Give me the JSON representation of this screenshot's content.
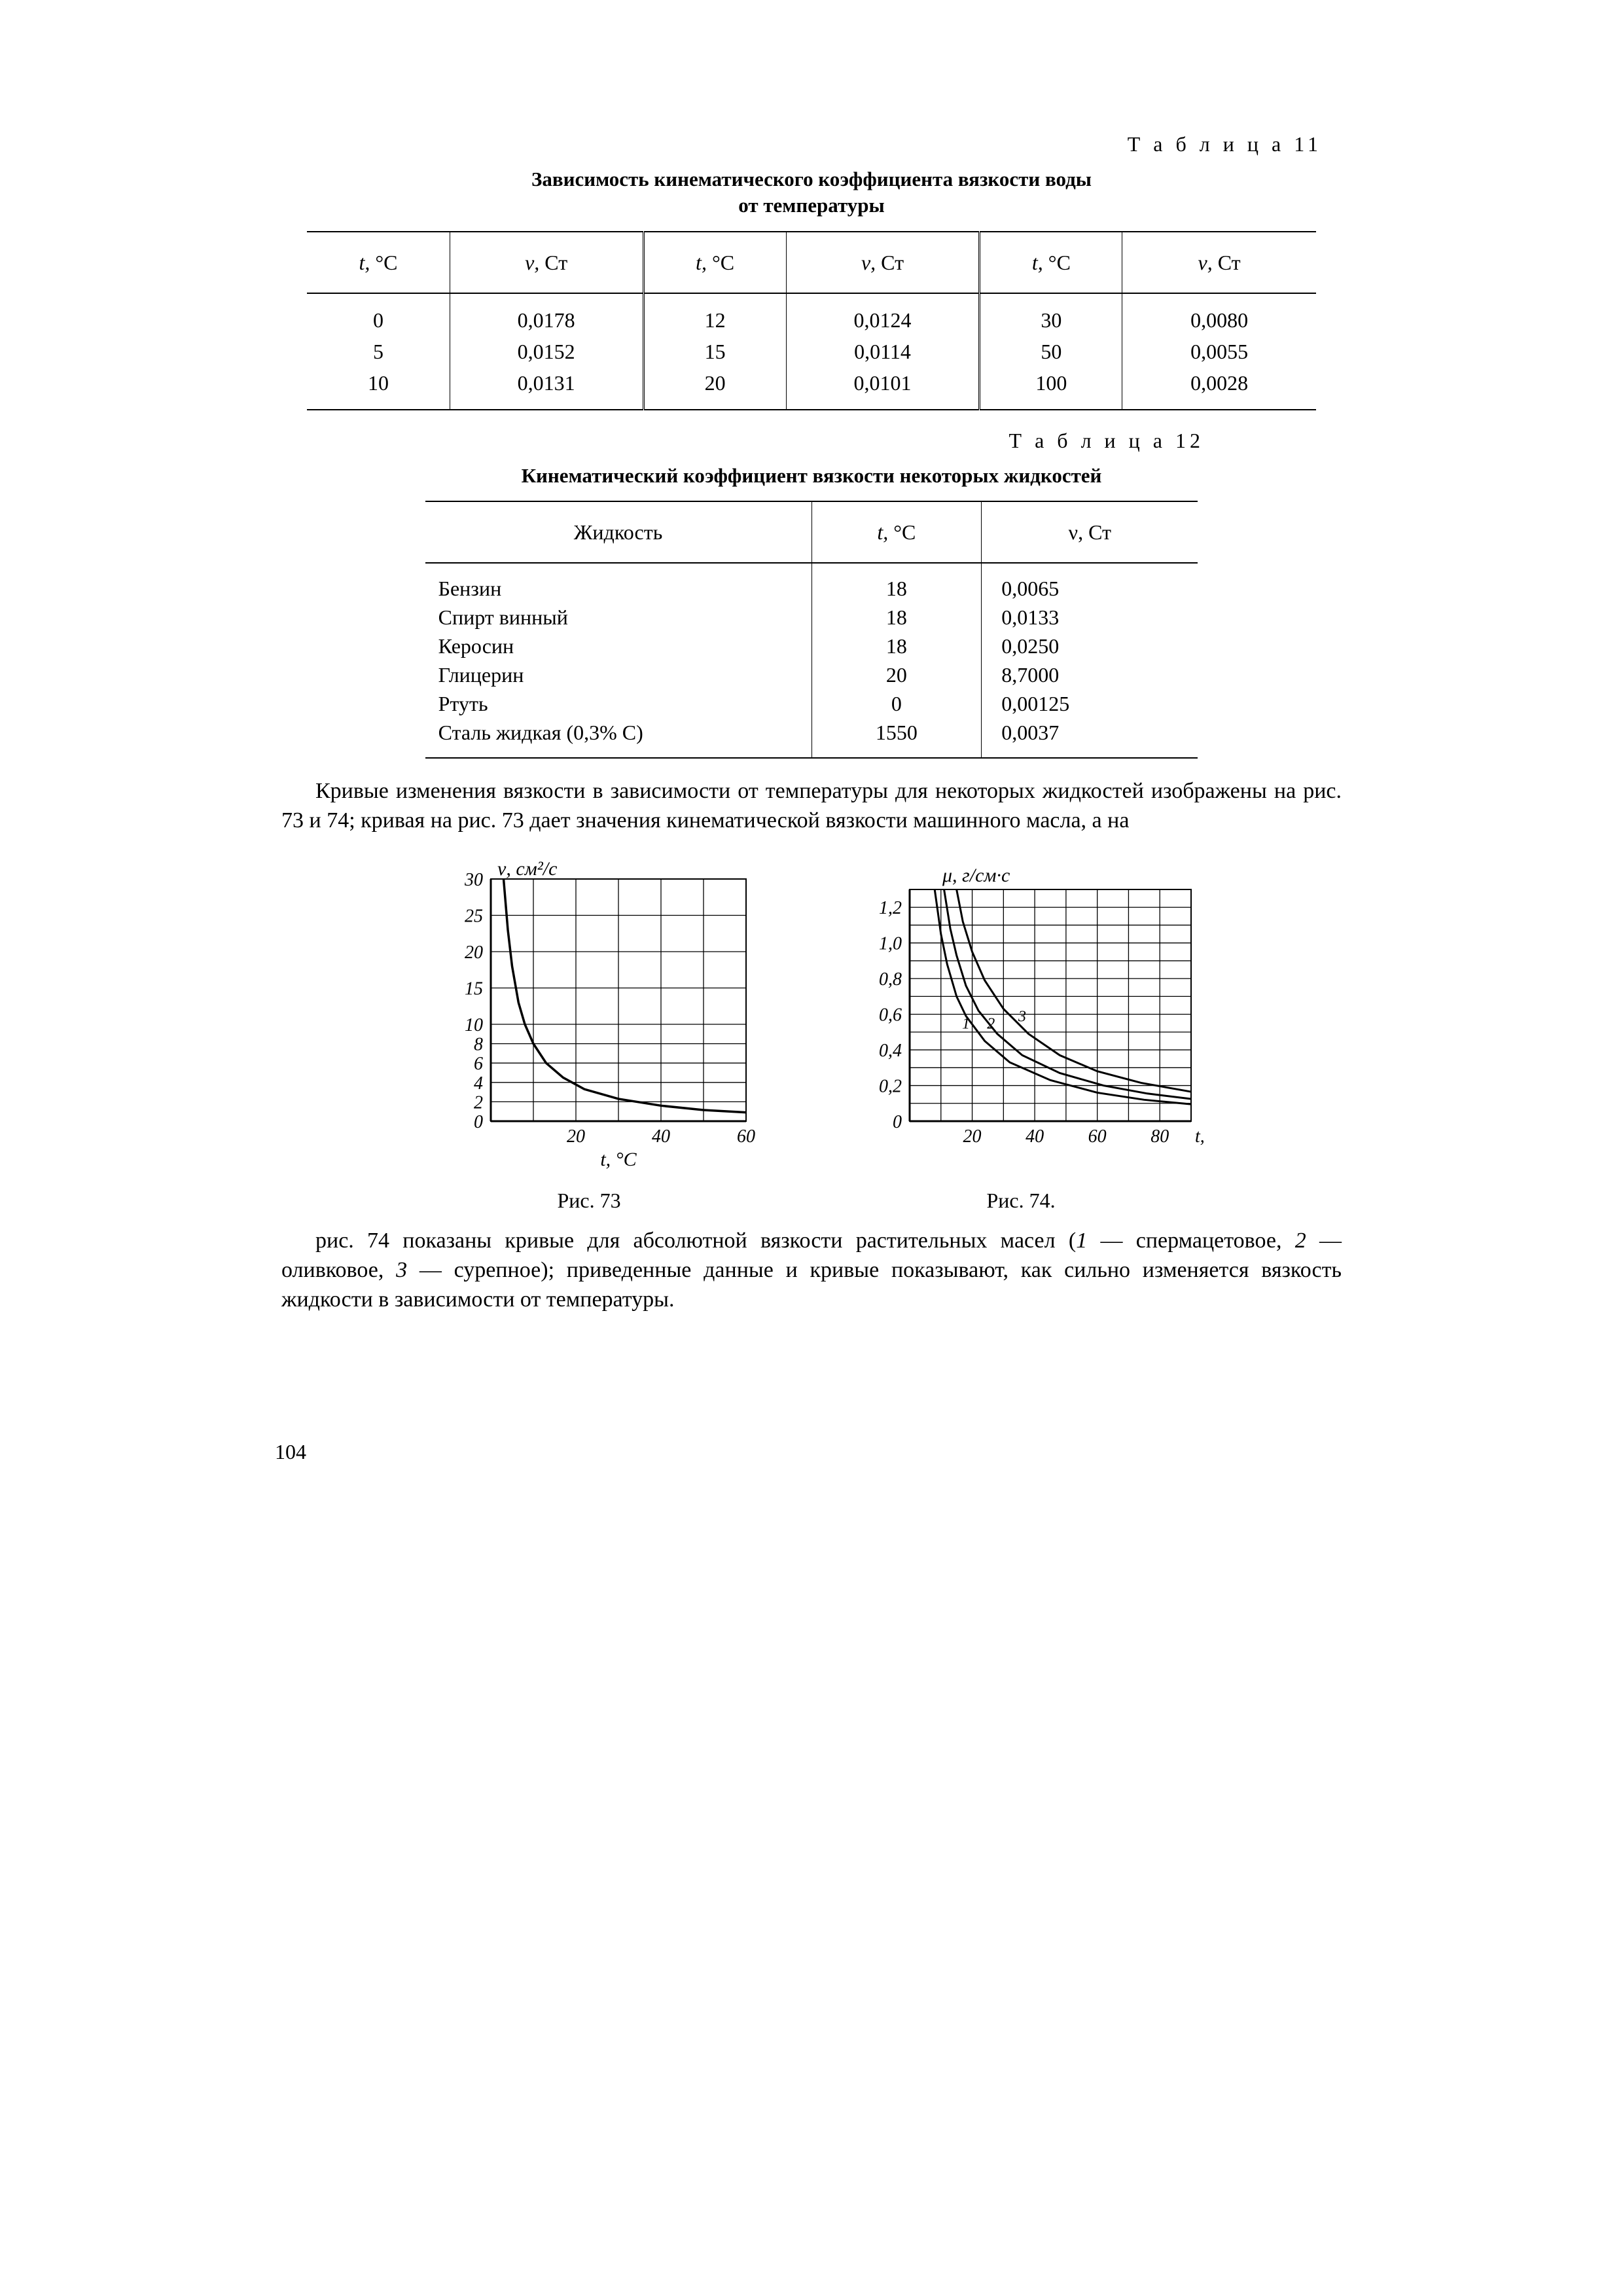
{
  "page_number": "104",
  "table11": {
    "label": "Т а б л и ц а  11",
    "title_line1": "Зависимость кинематического коэффициента вязкости воды",
    "title_line2": "от температуры",
    "head_t": "t,",
    "head_t_unit": "°C",
    "head_v": "ν,",
    "head_v_unit": "Ст",
    "rows": [
      {
        "t1": "0",
        "v1": "0,0178",
        "t2": "12",
        "v2": "0,0124",
        "t3": "30",
        "v3": "0,0080"
      },
      {
        "t1": "5",
        "v1": "0,0152",
        "t2": "15",
        "v2": "0,0114",
        "t3": "50",
        "v3": "0,0055"
      },
      {
        "t1": "10",
        "v1": "0,0131",
        "t2": "20",
        "v2": "0,0101",
        "t3": "100",
        "v3": "0,0028"
      }
    ]
  },
  "table12": {
    "label": "Т а б л и ц а  12",
    "title": "Кинематический коэффициент вязкости некоторых жидкостей",
    "head_liquid": "Жидкость",
    "head_t": "t,",
    "head_t_unit": "°C",
    "head_v": "ν,",
    "head_v_unit": "Ст",
    "rows": [
      {
        "n": "Бензин",
        "t": "18",
        "v": "0,0065"
      },
      {
        "n": "Спирт винный",
        "t": "18",
        "v": "0,0133"
      },
      {
        "n": "Керосин",
        "t": "18",
        "v": "0,0250"
      },
      {
        "n": "Глицерин",
        "t": "20",
        "v": "8,7000"
      },
      {
        "n": "Ртуть",
        "t": "0",
        "v": "0,00125"
      },
      {
        "n": "Сталь жидкая (0,3% C)",
        "t": "1550",
        "v": "0,0037"
      }
    ]
  },
  "para1": "Кривые изменения вязкости в зависимости от температуры для некоторых жидкостей изображены на рис. 73 и 74; кривая на рис. 73 дает значения кинематической вязкости машинного масла, а на",
  "para2_a": "рис. 74 показаны кривые для абсолютной вязкости растительных масел (",
  "para2_b": " — спермацетовое, ",
  "para2_c": " — оливковое, ",
  "para2_d": " — сурепное); приведенные данные и кривые показывают, как сильно изменяется вязкость жидкости в зависимости от температуры.",
  "para2_1": "1",
  "para2_2": "2",
  "para2_3": "3",
  "fig73": {
    "caption": "Рис. 73",
    "ylabel": "ν, см²/с",
    "xlabel": "t, °C",
    "yticks": [
      "0",
      "2",
      "4",
      "6",
      "8",
      "10",
      "15",
      "20",
      "25",
      "30"
    ],
    "xticks": [
      "20",
      "40",
      "60"
    ],
    "color": "#000000",
    "grid_color": "#000000",
    "background": "#ffffff",
    "xlim": [
      0,
      60
    ],
    "ylim": [
      0,
      30
    ],
    "curve": [
      [
        3,
        30
      ],
      [
        4,
        23
      ],
      [
        5,
        18
      ],
      [
        6.5,
        13
      ],
      [
        8,
        10
      ],
      [
        10,
        8
      ],
      [
        13,
        6
      ],
      [
        17,
        4.5
      ],
      [
        22,
        3.3
      ],
      [
        30,
        2.3
      ],
      [
        40,
        1.6
      ],
      [
        50,
        1.15
      ],
      [
        60,
        0.9
      ]
    ]
  },
  "fig74": {
    "caption": "Рис. 74.",
    "ylabel": "μ, г/см·с",
    "xlabel": "t,°C",
    "yticks": [
      "0",
      "0,2",
      "0,4",
      "0,6",
      "0,8",
      "1,0",
      "1,2"
    ],
    "xticks": [
      "20",
      "40",
      "60",
      "80"
    ],
    "labels": {
      "l1": "1",
      "l2": "2",
      "l3": "3"
    },
    "color": "#000000",
    "grid_color": "#000000",
    "background": "#ffffff",
    "xlim": [
      0,
      90
    ],
    "ylim": [
      0,
      1.3
    ],
    "curve1": [
      [
        8,
        1.3
      ],
      [
        10,
        1.05
      ],
      [
        12,
        0.88
      ],
      [
        15,
        0.7
      ],
      [
        18,
        0.59
      ],
      [
        24,
        0.45
      ],
      [
        32,
        0.33
      ],
      [
        45,
        0.23
      ],
      [
        60,
        0.16
      ],
      [
        75,
        0.12
      ],
      [
        90,
        0.095
      ]
    ],
    "curve2": [
      [
        11,
        1.3
      ],
      [
        13,
        1.08
      ],
      [
        15,
        0.93
      ],
      [
        18,
        0.76
      ],
      [
        22,
        0.62
      ],
      [
        28,
        0.49
      ],
      [
        36,
        0.37
      ],
      [
        48,
        0.27
      ],
      [
        62,
        0.2
      ],
      [
        76,
        0.155
      ],
      [
        90,
        0.125
      ]
    ],
    "curve3": [
      [
        15,
        1.3
      ],
      [
        17,
        1.12
      ],
      [
        20,
        0.95
      ],
      [
        24,
        0.79
      ],
      [
        30,
        0.63
      ],
      [
        38,
        0.49
      ],
      [
        48,
        0.37
      ],
      [
        60,
        0.28
      ],
      [
        74,
        0.215
      ],
      [
        90,
        0.165
      ]
    ]
  }
}
